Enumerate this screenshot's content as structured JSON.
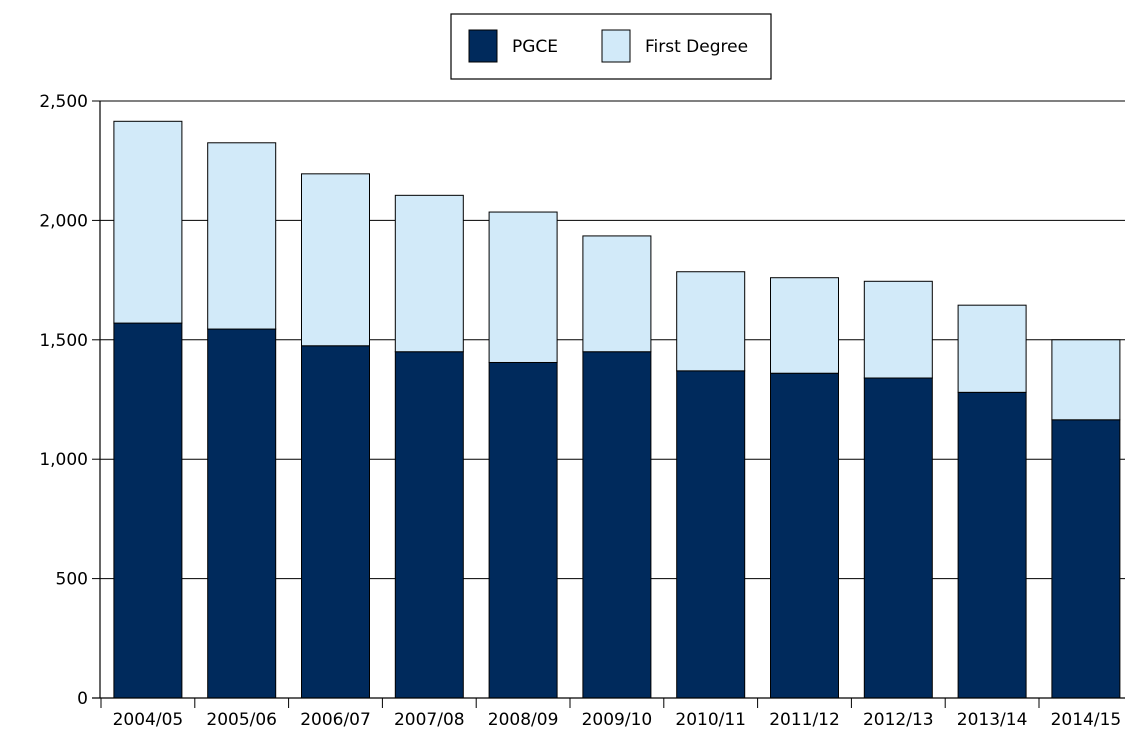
{
  "chart_data": {
    "type": "bar",
    "stacked": true,
    "title": "",
    "xlabel": "",
    "ylabel": "",
    "categories": [
      "2004/05",
      "2005/06",
      "2006/07",
      "2007/08",
      "2008/09",
      "2009/10",
      "2010/11",
      "2011/12",
      "2012/13",
      "2013/14",
      "2014/15"
    ],
    "series": [
      {
        "name": "PGCE",
        "color": "#002a5c",
        "values": [
          1570,
          1545,
          1475,
          1450,
          1405,
          1450,
          1370,
          1360,
          1340,
          1280,
          1165
        ]
      },
      {
        "name": "First Degree",
        "color": "#d2eaf9",
        "values": [
          845,
          780,
          720,
          655,
          630,
          485,
          415,
          400,
          405,
          365,
          335
        ]
      }
    ],
    "ylim": [
      0,
      2500
    ],
    "yticks": [
      0,
      500,
      1000,
      1500,
      2000,
      2500
    ],
    "ytick_labels": [
      "0",
      "500",
      "1,000",
      "1,500",
      "2,000",
      "2,500"
    ],
    "grid": "horizontal",
    "legend_position": "top-center"
  }
}
